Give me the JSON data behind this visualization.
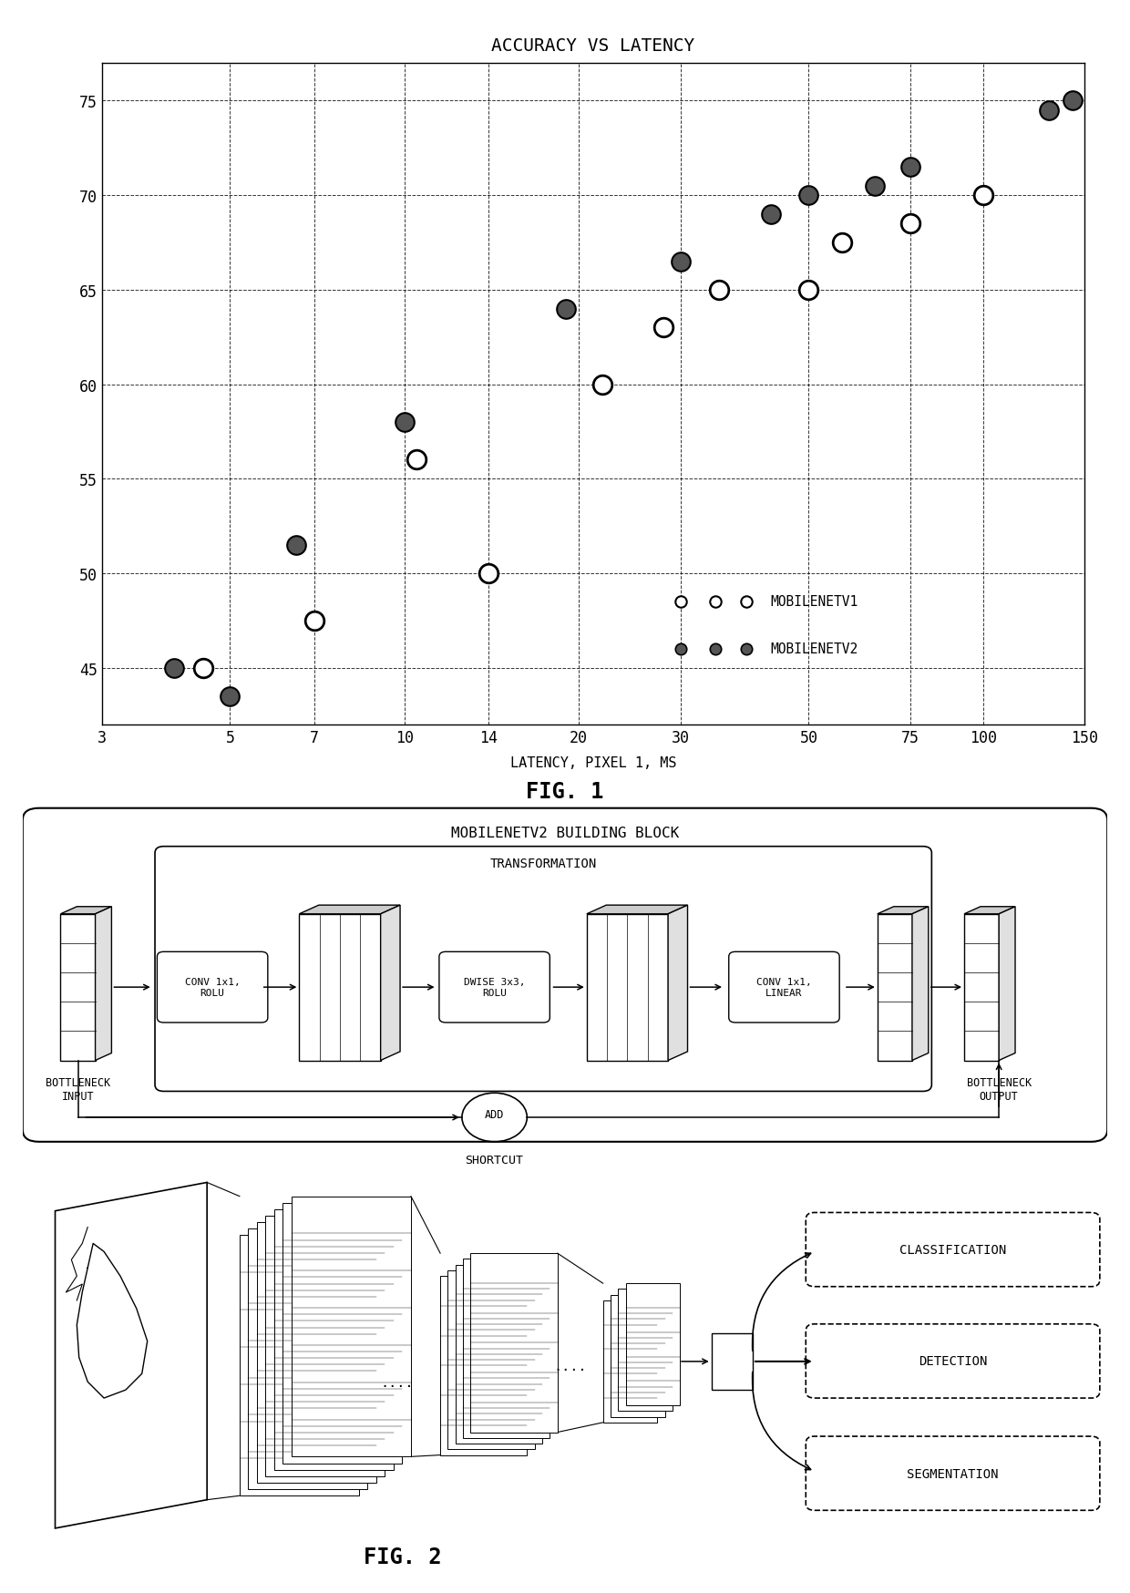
{
  "title": "ACCURACY VS LATENCY",
  "xlabel": "LATENCY, PIXEL 1, MS",
  "xticks": [
    3,
    5,
    7,
    10,
    14,
    20,
    30,
    50,
    75,
    100,
    150
  ],
  "yticks": [
    45,
    50,
    55,
    60,
    65,
    70,
    75
  ],
  "ylim": [
    42,
    77
  ],
  "mobilenetv1_x": [
    4.5,
    7.0,
    10.5,
    14.0,
    22.0,
    28.0,
    35.0,
    50.0,
    57.0,
    75.0,
    100.0
  ],
  "mobilenetv1_y": [
    45.0,
    47.5,
    56.0,
    50.0,
    60.0,
    63.0,
    65.0,
    65.0,
    67.5,
    68.5,
    70.0
  ],
  "mobilenetv2_x": [
    4.0,
    5.0,
    6.5,
    10.0,
    19.0,
    30.0,
    43.0,
    50.0,
    65.0,
    75.0,
    130.0,
    143.0
  ],
  "mobilenetv2_y": [
    45.0,
    43.5,
    51.5,
    58.0,
    64.0,
    66.5,
    69.0,
    70.0,
    70.5,
    71.5,
    74.5,
    75.0
  ],
  "fig1_label": "FIG. 1",
  "fig2_label": "FIG. 2",
  "legend_v1_label": "MOBILENETV1",
  "legend_v2_label": "MOBILENETV2",
  "building_block_title": "MOBILENETV2 BUILDING BLOCK",
  "transformation_label": "TRANSFORMATION",
  "conv1_label": "CONV 1x1,\nROLU",
  "dwise_label": "DWISE 3x3,\nROLU",
  "conv2_label": "CONV 1x1,\nLINEAR",
  "add_label": "ADD",
  "shortcut_label": "SHORTCUT",
  "bottleneck_input_label": "BOTTLENECK\nINPUT",
  "bottleneck_output_label": "BOTTLENECK\nOUTPUT",
  "classification_label": "CLASSIFICATION",
  "detection_label": "DETECTION",
  "segmentation_label": "SEGMENTATION"
}
